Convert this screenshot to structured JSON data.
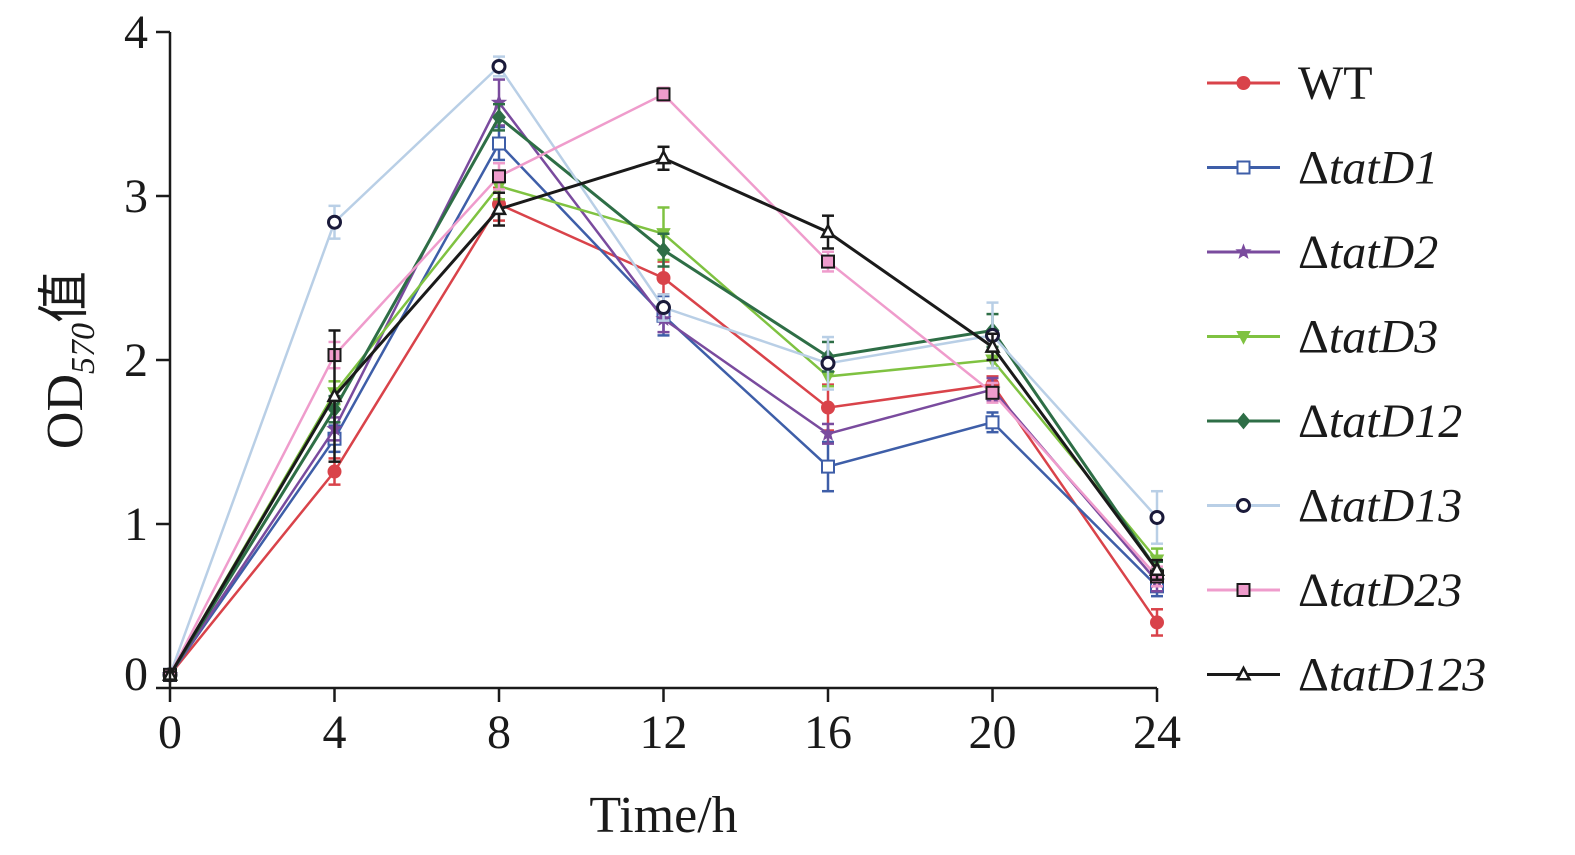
{
  "chart_data": {
    "type": "line",
    "x": [
      0,
      4,
      8,
      12,
      16,
      20,
      24
    ],
    "xlabel": "Time/h",
    "ylabel": {
      "main": "OD",
      "sub": "570",
      "suffix": "值"
    },
    "xlim": [
      0,
      24
    ],
    "ylim": [
      0,
      4
    ],
    "xticks": [
      "0",
      "4",
      "8",
      "12",
      "16",
      "20",
      "24"
    ],
    "yticks": [
      "0",
      "1",
      "2",
      "3",
      "4"
    ],
    "grid": false,
    "legend_position": "right",
    "series": [
      {
        "name": "WT",
        "prefix": "",
        "italic": false,
        "color": "#d9434a",
        "marker": "circle-filled",
        "values": [
          0.08,
          1.32,
          2.95,
          2.5,
          1.71,
          1.85,
          0.4
        ],
        "errors": [
          0.02,
          0.08,
          0.1,
          0.1,
          0.14,
          0.05,
          0.08
        ]
      },
      {
        "name": "tatD1",
        "prefix": "Δ",
        "italic": true,
        "color": "#3e5ea8",
        "marker": "square-open",
        "values": [
          0.08,
          1.52,
          3.32,
          2.27,
          1.35,
          1.62,
          0.62
        ],
        "errors": [
          0.02,
          0.08,
          0.1,
          0.12,
          0.15,
          0.06,
          0.06
        ]
      },
      {
        "name": "tatD2",
        "prefix": "Δ",
        "italic": true,
        "color": "#7a4b9e",
        "marker": "star",
        "values": [
          0.08,
          1.58,
          3.57,
          2.25,
          1.55,
          1.82,
          0.65
        ],
        "errors": [
          0.02,
          0.07,
          0.14,
          0.08,
          0.06,
          0.07,
          0.06
        ]
      },
      {
        "name": "tatD3",
        "prefix": "Δ",
        "italic": true,
        "color": "#7fc241",
        "marker": "triangle-down-filled",
        "values": [
          0.08,
          1.8,
          3.06,
          2.77,
          1.9,
          2.0,
          0.78
        ],
        "errors": [
          0.02,
          0.07,
          0.08,
          0.16,
          0.06,
          0.05,
          0.07
        ]
      },
      {
        "name": "tatD12",
        "prefix": "Δ",
        "italic": true,
        "color": "#2e6e46",
        "marker": "diamond-filled",
        "values": [
          0.08,
          1.7,
          3.48,
          2.67,
          2.02,
          2.18,
          0.72
        ],
        "errors": [
          0.02,
          0.08,
          0.08,
          0.1,
          0.09,
          0.1,
          0.05
        ]
      },
      {
        "name": "tatD13",
        "prefix": "Δ",
        "italic": true,
        "color": "#b9cfe6",
        "marker": "circle-open",
        "values": [
          0.08,
          2.84,
          3.79,
          2.32,
          1.98,
          2.15,
          1.04
        ],
        "errors": [
          0.02,
          0.1,
          0.06,
          0.08,
          0.16,
          0.2,
          0.16
        ]
      },
      {
        "name": "tatD23",
        "prefix": "Δ",
        "italic": true,
        "color": "#ef9ccc",
        "marker": "square-filled",
        "values": [
          0.08,
          2.03,
          3.12,
          3.62,
          2.6,
          1.8,
          0.68
        ],
        "errors": [
          0.02,
          0.08,
          0.08,
          0.04,
          0.06,
          0.06,
          0.06
        ]
      },
      {
        "name": "tatD123",
        "prefix": "Δ",
        "italic": true,
        "color": "#1a1a1a",
        "marker": "triangle-open",
        "values": [
          0.08,
          1.78,
          2.92,
          3.23,
          2.78,
          2.08,
          0.72
        ],
        "errors": [
          0.02,
          0.4,
          0.1,
          0.07,
          0.1,
          0.08,
          0.06
        ]
      }
    ]
  }
}
